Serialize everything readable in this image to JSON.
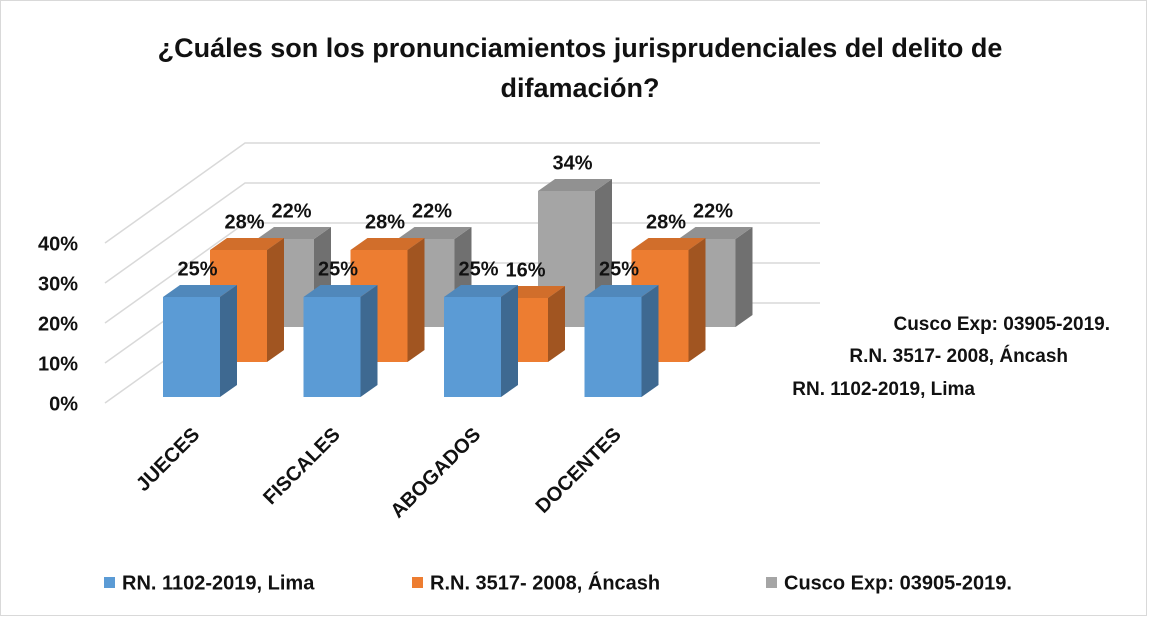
{
  "chart_data": {
    "type": "bar3d",
    "title": "¿Cuáles son los pronunciamientos jurisprudenciales del delito de difamación?",
    "categories": [
      "JUECES",
      "FISCALES",
      "ABOGADOS",
      "DOCENTES"
    ],
    "series": [
      {
        "name": "RN. 1102-2019, Lima",
        "color": "#5b9bd5",
        "values": [
          25,
          25,
          25,
          25
        ],
        "value_labels": [
          "25%",
          "25%",
          "25%",
          "25%"
        ]
      },
      {
        "name": "R.N. 3517- 2008, Áncash",
        "color": "#ed7d31",
        "values": [
          28,
          28,
          16,
          28
        ],
        "value_labels": [
          "28%",
          "28%",
          "16%",
          "28%"
        ]
      },
      {
        "name": "Cusco Exp: 03905-2019.",
        "color": "#a5a5a5",
        "values": [
          22,
          22,
          34,
          22
        ],
        "value_labels": [
          "22%",
          "22%",
          "34%",
          "22%"
        ]
      }
    ],
    "ylim": [
      0,
      40
    ],
    "yticks": [
      {
        "value": 0,
        "label": "0%"
      },
      {
        "value": 10,
        "label": "10%"
      },
      {
        "value": 20,
        "label": "20%"
      },
      {
        "value": 30,
        "label": "30%"
      },
      {
        "value": 40,
        "label": "40%"
      }
    ],
    "grid": true,
    "legend": "bottom"
  }
}
